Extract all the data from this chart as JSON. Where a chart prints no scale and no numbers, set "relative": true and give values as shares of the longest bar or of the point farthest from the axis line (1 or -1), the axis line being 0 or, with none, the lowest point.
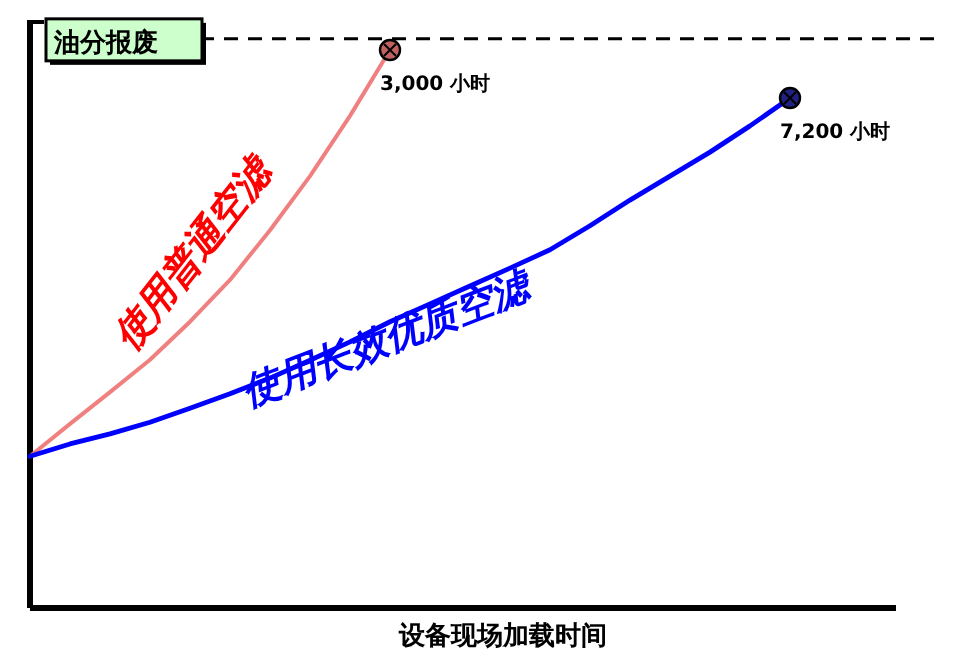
{
  "chart_data": {
    "type": "line",
    "relative": true,
    "xlabel": "设备现场加载时间",
    "categories": [
      null,
      null,
      null,
      null,
      null,
      null,
      null,
      null,
      null,
      null,
      null,
      null,
      null,
      null,
      null,
      null,
      null,
      null,
      null,
      null
    ],
    "series": [
      {
        "name": "使用普通空滤",
        "color": "#f08080",
        "values": [
          0.272,
          0.33,
          0.387,
          0.445,
          0.513,
          0.588,
          0.677,
          0.774,
          0.882,
          1,
          null,
          null,
          null,
          null,
          null,
          null,
          null,
          null,
          null,
          null
        ]
      },
      {
        "name": "使用长效优质空滤",
        "color": "#0000ff",
        "values": [
          0.272,
          0.294,
          0.312,
          0.333,
          0.358,
          0.384,
          0.412,
          0.444,
          0.477,
          0.513,
          0.545,
          0.577,
          0.609,
          0.642,
          0.685,
          0.731,
          0.774,
          0.817,
          0.864,
          0.914
        ]
      }
    ],
    "ref_lines": [
      {
        "axis": "y",
        "value": 1.02,
        "label": "油分报废",
        "color": "#000000",
        "line_style": "dashed"
      }
    ],
    "annotations": [
      "3,000 小时",
      "7,200 小时"
    ]
  }
}
